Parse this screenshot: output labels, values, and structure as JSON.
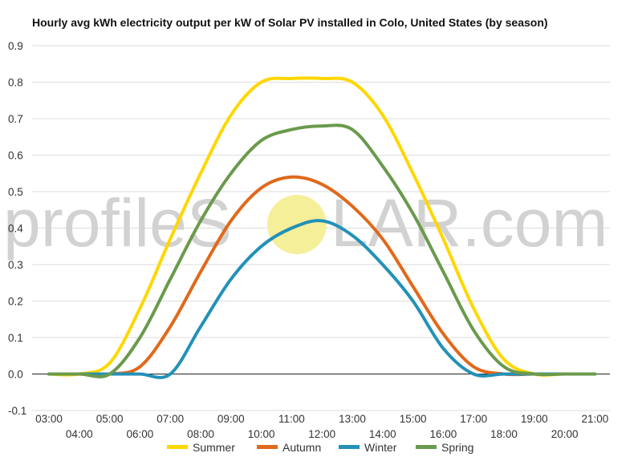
{
  "watermark": {
    "left_text": "profileS",
    "right_text": "LAR.com",
    "sun_color": "#f6ef9a"
  },
  "chart_data": {
    "type": "line",
    "title": "Hourly avg kWh electricity output per kW of Solar PV installed in Colo, United States (by season)",
    "xlabel": "",
    "ylabel": "",
    "x": [
      "03:00",
      "04:00",
      "05:00",
      "06:00",
      "07:00",
      "08:00",
      "09:00",
      "10:00",
      "11:00",
      "12:00",
      "13:00",
      "14:00",
      "15:00",
      "16:00",
      "17:00",
      "18:00",
      "19:00",
      "20:00",
      "21:00"
    ],
    "ylim": [
      -0.1,
      0.9
    ],
    "yticks": [
      "-0.1",
      "0.0",
      "0.1",
      "0.2",
      "0.3",
      "0.4",
      "0.5",
      "0.6",
      "0.7",
      "0.8",
      "0.9"
    ],
    "grid": true,
    "legend_position": "bottom",
    "series": [
      {
        "name": "Summer",
        "color": "#ffd700",
        "values": [
          0.0,
          0.0,
          0.03,
          0.18,
          0.37,
          0.55,
          0.71,
          0.8,
          0.81,
          0.81,
          0.8,
          0.71,
          0.55,
          0.37,
          0.18,
          0.04,
          0.0,
          0.0,
          0.0
        ]
      },
      {
        "name": "Autumn",
        "color": "#e0691a",
        "values": [
          0.0,
          0.0,
          0.0,
          0.02,
          0.13,
          0.28,
          0.42,
          0.51,
          0.54,
          0.52,
          0.46,
          0.37,
          0.24,
          0.11,
          0.02,
          0.0,
          0.0,
          0.0,
          0.0
        ]
      },
      {
        "name": "Winter",
        "color": "#2391b8",
        "values": [
          0.0,
          0.0,
          0.0,
          0.0,
          0.0,
          0.13,
          0.26,
          0.35,
          0.4,
          0.42,
          0.38,
          0.3,
          0.2,
          0.07,
          0.0,
          0.0,
          0.0,
          0.0,
          0.0
        ]
      },
      {
        "name": "Spring",
        "color": "#6a9a4c",
        "values": [
          0.0,
          0.0,
          0.0,
          0.1,
          0.26,
          0.42,
          0.55,
          0.64,
          0.67,
          0.68,
          0.67,
          0.57,
          0.44,
          0.28,
          0.12,
          0.02,
          0.0,
          0.0,
          0.0
        ]
      }
    ]
  }
}
